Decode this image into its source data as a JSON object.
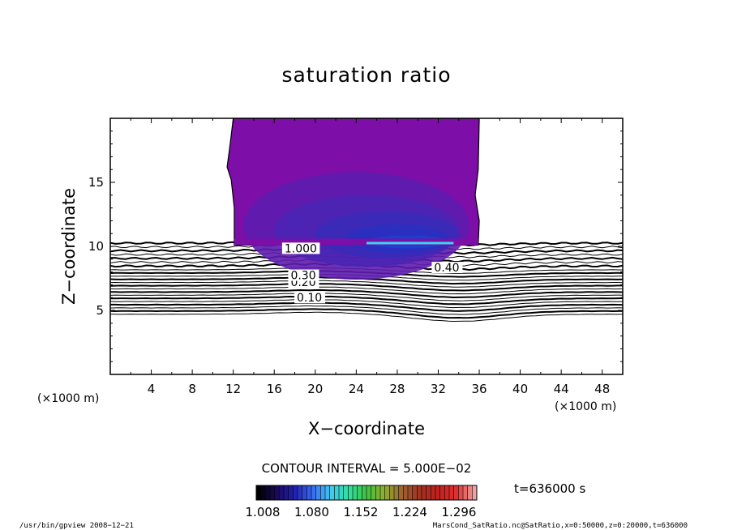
{
  "chart_data": {
    "type": "heatmap",
    "title": "saturation ratio",
    "xlabel": "X−coordinate",
    "ylabel": "Z−coordinate",
    "x_unit_label": "(×1000 m)",
    "y_unit_label": "(×1000 m)",
    "xlim": [
      0,
      50
    ],
    "ylim": [
      0,
      20
    ],
    "x_ticks": [
      4,
      8,
      12,
      16,
      20,
      24,
      28,
      32,
      36,
      40,
      44,
      48
    ],
    "y_ticks": [
      5,
      10,
      15
    ],
    "contour_interval_text": "CONTOUR INTERVAL = 5.000E−02",
    "contour_lines": [
      {
        "level": 0.1,
        "label": "0.10",
        "base_z": 6.15
      },
      {
        "level": 0.2,
        "label": "0.20",
        "base_z": 7.2
      },
      {
        "level": 0.3,
        "label": "0.30",
        "base_z": 7.75
      },
      {
        "level": 0.4,
        "label": "0.40",
        "base_z": 8.3
      },
      {
        "level": 1.0,
        "label": "1.000",
        "base_z": 9.9
      }
    ],
    "saturated_region": {
      "x_start": 12,
      "x_end": 36,
      "z_bottom": 10.1,
      "z_top": 20
    },
    "colorbar": {
      "min": 1.008,
      "max": 1.296,
      "tick_labels": [
        "1.008",
        "1.080",
        "1.152",
        "1.224",
        "1.296"
      ],
      "colors": [
        "#000000",
        "#1a0a5a",
        "#2020b0",
        "#3a6af0",
        "#40c8f0",
        "#30e0a0",
        "#40c040",
        "#90b030",
        "#a06030",
        "#a03020",
        "#c02020",
        "#e03030",
        "#f0a0a0"
      ]
    },
    "time_label": "t=636000 s",
    "footer_left": "/usr/bin/gpview   2008−12−21",
    "footer_right": "MarsCond_SatRatio.nc@SatRatio,x=0:50000,z=0:20000,t=636000"
  }
}
